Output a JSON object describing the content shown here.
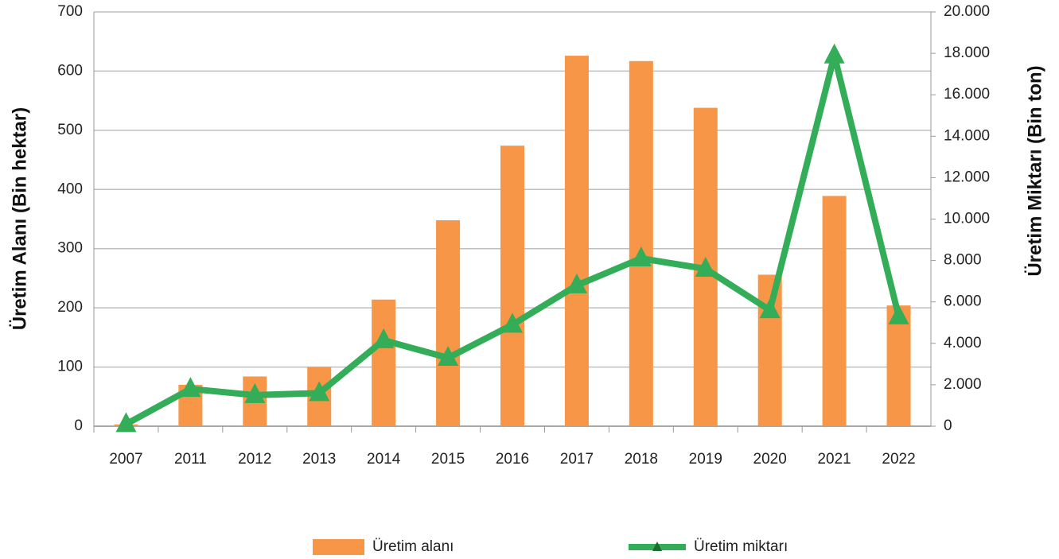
{
  "chart_data": {
    "type": "bar",
    "ylabel": "Üretim Alanı (Bin hektar)",
    "y2label": "Üretim Miktarı (Bin ton)",
    "categories": [
      "2007",
      "2011",
      "2012",
      "2013",
      "2014",
      "2015",
      "2016",
      "2017",
      "2018",
      "2019",
      "2020",
      "2021",
      "2022"
    ],
    "series": [
      {
        "name": "Üretim alanı",
        "type": "bar",
        "color": "#f79646",
        "values": [
          3,
          70,
          84,
          100,
          214,
          348,
          474,
          626,
          617,
          538,
          256,
          389,
          204
        ]
      },
      {
        "name": "Üretim miktarı",
        "type": "line",
        "axis": "y2",
        "color": "#33ad57",
        "values": [
          100,
          1800,
          1500,
          1600,
          4150,
          3300,
          4900,
          6800,
          8100,
          7600,
          5600,
          17900,
          5300
        ]
      }
    ],
    "ylim": [
      0,
      700
    ],
    "yticks": [
      0,
      100,
      200,
      300,
      400,
      500,
      600,
      700
    ],
    "y2lim": [
      0,
      20000
    ],
    "y2ticks": [
      0,
      {
        "value": 2000,
        "label": "2.000"
      },
      {
        "value": 4000,
        "label": "4.000"
      },
      {
        "value": 6000,
        "label": "6.000"
      },
      {
        "value": 8000,
        "label": "8.000"
      },
      {
        "value": 10000,
        "label": "10.000"
      },
      {
        "value": 12000,
        "label": "12.000"
      },
      {
        "value": 14000,
        "label": "14.000"
      },
      {
        "value": 16000,
        "label": "16.000"
      },
      {
        "value": 18000,
        "label": "18.000"
      },
      {
        "value": 20000,
        "label": "20.000"
      }
    ],
    "grid": true,
    "legend": "bottom"
  }
}
